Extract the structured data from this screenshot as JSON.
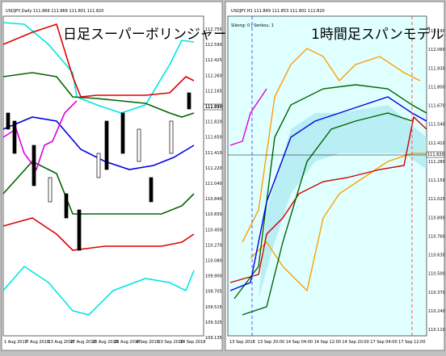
{
  "left_panel": {
    "header": "USDJPY,Daily  111.866 111.866 111.801 111.820",
    "title": "日足スーパーボリンジャー",
    "price_box": "111.820",
    "yticks": [
      "112.755",
      "112.590",
      "112.425",
      "112.260",
      "112.165",
      "111.990",
      "111.820",
      "111.650",
      "111.410",
      "111.220",
      "111.040",
      "110.840",
      "110.650",
      "110.450",
      "110.270",
      "110.080",
      "109.900",
      "109.705",
      "109.515",
      "109.325",
      "109.135"
    ],
    "xticks": [
      "1 Aug 2018",
      "7 Aug 2018",
      "13 Aug 2018",
      "17 Aug 2018",
      "23 Aug 2018",
      "29 Aug 2018",
      "4 Sep 2018",
      "10 Sep 2018",
      "14 Sep 2018"
    ]
  },
  "right_panel": {
    "header": "USDJPY,H1  111.849 111.853 111.801 111.820",
    "subheader": "Sikong: 0 | Senkou: 1",
    "title": "1時間足スパンモデル",
    "price_box": "111.820",
    "yticks": [
      "112.190",
      "112.060",
      "111.930",
      "111.800",
      "111.670",
      "111.540",
      "111.410",
      "111.280",
      "111.150",
      "111.020",
      "110.890",
      "110.760",
      "110.630",
      "110.500",
      "110.370",
      "110.240",
      "110.110"
    ],
    "xticks": [
      "13 Sep 2018",
      "13 Sep 20:00",
      "14 Sep 04:00",
      "14 Sep 12:00",
      "14 Sep 20:00",
      "17 Sep 04:00",
      "17 Sep 12:00"
    ]
  }
}
